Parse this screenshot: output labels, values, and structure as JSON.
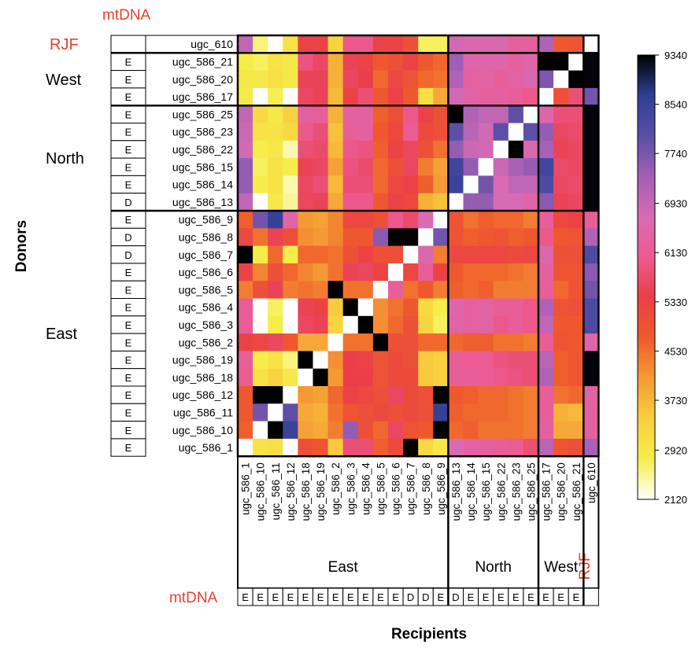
{
  "chart_data": {
    "type": "heatmap",
    "top_label": "mtDNA",
    "donors_axis_label": "Donors",
    "recipients_axis_label": "Recipients",
    "bottom_mtdna_label": "mtDNA",
    "row_groups": [
      {
        "label": "RJF",
        "count": 1,
        "color": "#e8412c"
      },
      {
        "label": "West",
        "count": 3
      },
      {
        "label": "North",
        "count": 6
      },
      {
        "label": "East",
        "count": 14
      }
    ],
    "col_groups": [
      {
        "label": "East",
        "count": 14
      },
      {
        "label": "North",
        "count": 6
      },
      {
        "label": "West",
        "count": 3
      },
      {
        "label": "RJF",
        "count": 1,
        "color": "#e8412c"
      }
    ],
    "row_labels": [
      "ugc_610",
      "ugc_586_21",
      "ugc_586_20",
      "ugc_586_17",
      "ugc_586_25",
      "ugc_586_23",
      "ugc_586_22",
      "ugc_586_15",
      "ugc_586_14",
      "ugc_586_13",
      "ugc_586_9",
      "ugc_586_8",
      "ugc_586_7",
      "ugc_586_6",
      "ugc_586_5",
      "ugc_586_4",
      "ugc_586_3",
      "ugc_586_2",
      "ugc_586_19",
      "ugc_586_18",
      "ugc_586_12",
      "ugc_586_11",
      "ugc_586_10",
      "ugc_586_1"
    ],
    "row_mtdna": [
      "",
      "E",
      "E",
      "E",
      "E",
      "E",
      "E",
      "E",
      "E",
      "D",
      "E",
      "D",
      "D",
      "E",
      "E",
      "E",
      "E",
      "E",
      "E",
      "E",
      "E",
      "E",
      "E",
      "E"
    ],
    "col_labels": [
      "ugc_586_1",
      "ugc_586_10",
      "ugc_586_11",
      "ugc_586_12",
      "ugc_586_18",
      "ugc_586_19",
      "ugc_586_2",
      "ugc_586_3",
      "ugc_586_4",
      "ugc_586_5",
      "ugc_586_6",
      "ugc_586_7",
      "ugc_586_8",
      "ugc_586_9",
      "ugc_586_13",
      "ugc_586_14",
      "ugc_586_15",
      "ugc_586_22",
      "ugc_586_23",
      "ugc_586_25",
      "ugc_586_17",
      "ugc_586_20",
      "ugc_586_21",
      "ugc_610"
    ],
    "col_mtdna": [
      "E",
      "E",
      "E",
      "E",
      "E",
      "E",
      "E",
      "E",
      "E",
      "E",
      "E",
      "D",
      "D",
      "E",
      "D",
      "E",
      "E",
      "E",
      "E",
      "E",
      "E",
      "E",
      "E",
      ""
    ],
    "colorbar": {
      "min": 2120,
      "max": 9340,
      "ticks": [
        9340,
        8540,
        7740,
        6930,
        6130,
        5330,
        4530,
        3730,
        2920,
        2120
      ],
      "stops": [
        "#ffffff",
        "#f6ee4a",
        "#f8cf3e",
        "#f59a35",
        "#ef5a2c",
        "#ea3f4a",
        "#ec5a92",
        "#d86bb3",
        "#a35fb7",
        "#5a4ea5",
        "#2e3f95",
        "#000000"
      ]
    },
    "values": [
      [
        7000,
        2600,
        2150,
        3000,
        5300,
        5300,
        3300,
        6000,
        6000,
        5300,
        5300,
        5000,
        2700,
        2700,
        6800,
        6600,
        6600,
        6600,
        6300,
        6300,
        7200,
        4800,
        4900,
        2120
      ],
      [
        2800,
        2700,
        3000,
        2900,
        5900,
        5600,
        3800,
        5500,
        5300,
        4800,
        5000,
        5300,
        4800,
        4600,
        7400,
        6500,
        6500,
        6500,
        6300,
        6500,
        9340,
        9340,
        2120,
        9300
      ],
      [
        2900,
        2900,
        3100,
        2900,
        5500,
        5500,
        3800,
        5600,
        5400,
        4600,
        5200,
        4900,
        4600,
        4500,
        7200,
        6300,
        6400,
        6200,
        6400,
        6600,
        7700,
        2120,
        9340,
        9300
      ],
      [
        2850,
        2120,
        2750,
        2120,
        5600,
        5500,
        3700,
        5300,
        5800,
        4800,
        5300,
        4800,
        3100,
        3900,
        6800,
        6400,
        6300,
        6300,
        6200,
        6000,
        2120,
        5000,
        5800,
        7800
      ],
      [
        7000,
        3200,
        2900,
        3400,
        6300,
        6200,
        3800,
        6300,
        6300,
        4700,
        5000,
        6000,
        5300,
        5000,
        9340,
        7200,
        7000,
        7000,
        8000,
        2120,
        6500,
        5800,
        5800,
        9300
      ],
      [
        6900,
        3000,
        3000,
        3200,
        6000,
        5800,
        3600,
        6200,
        6300,
        4800,
        5200,
        6100,
        5100,
        5000,
        8000,
        7100,
        6800,
        8000,
        2120,
        8000,
        7500,
        5600,
        5700,
        9300
      ],
      [
        6800,
        2800,
        2900,
        2400,
        5800,
        5700,
        3700,
        6000,
        5900,
        4700,
        5300,
        5600,
        5000,
        4500,
        7500,
        6900,
        6800,
        2120,
        9340,
        6600,
        7300,
        5500,
        5600,
        9300
      ],
      [
        7500,
        2700,
        3000,
        2800,
        5500,
        5600,
        4000,
        5900,
        5700,
        4600,
        5000,
        5600,
        4400,
        4000,
        8400,
        7500,
        2120,
        6900,
        7300,
        7500,
        8400,
        5700,
        5600,
        9300
      ],
      [
        7500,
        2800,
        3000,
        2400,
        5600,
        5800,
        3700,
        5800,
        5800,
        4600,
        5200,
        5300,
        4700,
        4100,
        8500,
        2120,
        7800,
        6700,
        7000,
        7000,
        8200,
        5600,
        5700,
        9300
      ],
      [
        7000,
        2120,
        2900,
        2500,
        5600,
        5500,
        3900,
        6000,
        6000,
        4800,
        5300,
        5200,
        3800,
        3600,
        2120,
        7500,
        7500,
        6700,
        6700,
        6500,
        7600,
        5500,
        5600,
        9300
      ],
      [
        4700,
        7800,
        8600,
        6500,
        4100,
        4000,
        4300,
        5200,
        5200,
        5000,
        6000,
        5700,
        6700,
        2120,
        4900,
        4500,
        4700,
        4600,
        4600,
        4400,
        6200,
        5200,
        5300,
        6200
      ],
      [
        5200,
        4500,
        5500,
        5000,
        4200,
        4100,
        4300,
        4800,
        4800,
        7600,
        9340,
        9340,
        2120,
        7800,
        4900,
        4700,
        4800,
        4900,
        4700,
        4800,
        6000,
        4800,
        4900,
        7200
      ],
      [
        9340,
        2800,
        4600,
        2800,
        4600,
        4600,
        4500,
        5000,
        5300,
        5000,
        5000,
        2120,
        6600,
        4400,
        5200,
        5200,
        5200,
        5200,
        5100,
        5200,
        6600,
        5000,
        5000,
        8200
      ],
      [
        5300,
        4300,
        5000,
        4600,
        4300,
        4100,
        4500,
        5500,
        5600,
        5300,
        2120,
        5200,
        6200,
        5300,
        4800,
        4600,
        4600,
        4600,
        4500,
        4400,
        6300,
        4900,
        4900,
        7600
      ],
      [
        4400,
        5000,
        5500,
        4400,
        4500,
        4400,
        9340,
        4500,
        4500,
        2120,
        6200,
        4500,
        4800,
        4400,
        4700,
        4600,
        4700,
        4400,
        4400,
        4400,
        6200,
        4600,
        4900,
        7800
      ],
      [
        6100,
        2120,
        2700,
        2120,
        5500,
        5300,
        3500,
        9340,
        2120,
        4200,
        4500,
        4800,
        3200,
        2800,
        6500,
        6300,
        6400,
        6200,
        6200,
        6000,
        7200,
        4900,
        5000,
        8200
      ],
      [
        6100,
        2120,
        2800,
        2120,
        5600,
        5500,
        3300,
        2120,
        9340,
        4200,
        4600,
        5000,
        3300,
        2700,
        6400,
        6300,
        6400,
        6000,
        6200,
        6000,
        7000,
        4800,
        4800,
        8200
      ],
      [
        5300,
        5200,
        5600,
        4800,
        3900,
        3900,
        2120,
        4500,
        4500,
        9340,
        5000,
        5000,
        4600,
        4600,
        4600,
        4700,
        4700,
        4500,
        4500,
        4400,
        6100,
        4900,
        4800,
        6500
      ],
      [
        6200,
        2800,
        3000,
        2600,
        9340,
        2120,
        4200,
        5400,
        5300,
        4900,
        5100,
        5000,
        3500,
        3400,
        6200,
        6100,
        6100,
        5900,
        5800,
        5800,
        7100,
        4700,
        4800,
        9300
      ],
      [
        6100,
        3000,
        3300,
        2900,
        2120,
        9340,
        4100,
        5400,
        5400,
        4900,
        5100,
        5100,
        3500,
        3400,
        6200,
        6200,
        6100,
        6000,
        5900,
        5800,
        7200,
        4700,
        4800,
        9300
      ],
      [
        4800,
        9340,
        9340,
        2120,
        4100,
        4000,
        4600,
        5300,
        5200,
        5000,
        5600,
        5100,
        5000,
        9340,
        4800,
        4700,
        4600,
        4600,
        4500,
        4400,
        6200,
        4500,
        4600,
        6400
      ],
      [
        4800,
        7800,
        2120,
        8000,
        3900,
        3800,
        4500,
        4900,
        5000,
        5100,
        5000,
        5100,
        5000,
        8600,
        4700,
        4600,
        4600,
        4600,
        4500,
        4400,
        6200,
        3800,
        3700,
        6300
      ],
      [
        4700,
        2120,
        9340,
        8500,
        4000,
        3900,
        4400,
        7500,
        5000,
        4600,
        5600,
        4900,
        4800,
        9340,
        4600,
        4700,
        4500,
        4500,
        4500,
        4400,
        6300,
        3900,
        3900,
        6300
      ],
      [
        2120,
        3000,
        3100,
        2120,
        5000,
        4900,
        3500,
        5800,
        5800,
        4700,
        5100,
        9340,
        3200,
        2900,
        6700,
        6400,
        6300,
        6200,
        6100,
        5800,
        7100,
        4900,
        5000,
        7300
      ]
    ]
  }
}
